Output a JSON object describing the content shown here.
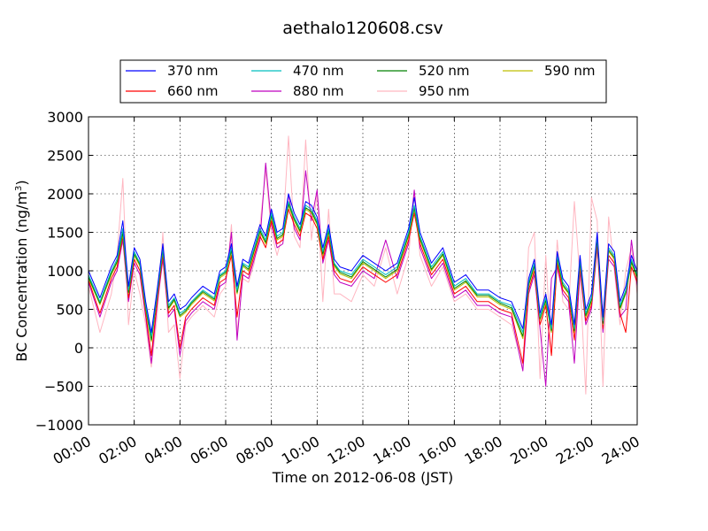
{
  "chart_data": {
    "type": "line",
    "title": "aethalo120608.csv",
    "xlabel": "Time on 2012-06-08 (JST)",
    "ylabel": "BC Concentration (ng/m",
    "ylabel_sup": "3",
    "ylabel_end": ")",
    "xlim": [
      0,
      24
    ],
    "ylim": [
      -1000,
      3000
    ],
    "xticks": [
      0,
      2,
      4,
      6,
      8,
      10,
      12,
      14,
      16,
      18,
      20,
      22,
      24
    ],
    "xtick_labels": [
      "00:00",
      "02:00",
      "04:00",
      "06:00",
      "08:00",
      "10:00",
      "12:00",
      "14:00",
      "16:00",
      "18:00",
      "20:00",
      "22:00",
      "24:00"
    ],
    "yticks": [
      -1000,
      -500,
      0,
      500,
      1000,
      1500,
      2000,
      2500,
      3000
    ],
    "ytick_labels": [
      "−1000",
      "−500",
      "0",
      "500",
      "1000",
      "1500",
      "2000",
      "2500",
      "3000"
    ],
    "grid": true,
    "legend_position": "top",
    "x": [
      0.0,
      0.5,
      1.0,
      1.25,
      1.5,
      1.75,
      2.0,
      2.25,
      2.5,
      2.75,
      3.0,
      3.25,
      3.5,
      3.75,
      4.0,
      4.25,
      4.5,
      5.0,
      5.5,
      5.75,
      6.0,
      6.25,
      6.5,
      6.75,
      7.0,
      7.25,
      7.5,
      7.75,
      8.0,
      8.25,
      8.5,
      8.75,
      9.0,
      9.25,
      9.5,
      9.75,
      10.0,
      10.25,
      10.5,
      10.75,
      11.0,
      11.5,
      12.0,
      12.5,
      13.0,
      13.5,
      14.0,
      14.25,
      14.5,
      15.0,
      15.5,
      16.0,
      16.5,
      17.0,
      17.5,
      18.0,
      18.5,
      19.0,
      19.25,
      19.5,
      19.75,
      20.0,
      20.25,
      20.5,
      20.75,
      21.0,
      21.25,
      21.5,
      21.75,
      22.0,
      22.25,
      22.5,
      22.75,
      23.0,
      23.25,
      23.5,
      23.75,
      24.0
    ],
    "series": [
      {
        "name": "370 nm",
        "color": "#0000ff",
        "values": [
          1000,
          650,
          1050,
          1200,
          1650,
          800,
          1300,
          1150,
          600,
          200,
          750,
          1350,
          600,
          700,
          500,
          550,
          650,
          800,
          700,
          1000,
          1050,
          1350,
          800,
          1150,
          1100,
          1350,
          1600,
          1450,
          1800,
          1500,
          1550,
          2000,
          1750,
          1600,
          1900,
          1850,
          1700,
          1300,
          1600,
          1150,
          1050,
          1000,
          1200,
          1100,
          1000,
          1100,
          1550,
          1950,
          1500,
          1100,
          1300,
          850,
          950,
          750,
          750,
          650,
          600,
          250,
          900,
          1150,
          450,
          700,
          300,
          1250,
          900,
          800,
          300,
          1200,
          500,
          700,
          1500,
          400,
          1350,
          1250,
          600,
          800,
          1200,
          1000
        ]
      },
      {
        "name": "470 nm",
        "color": "#00bfbf",
        "values": [
          950,
          600,
          1000,
          1150,
          1550,
          750,
          1250,
          1100,
          550,
          150,
          700,
          1300,
          550,
          650,
          450,
          500,
          600,
          750,
          650,
          950,
          1000,
          1300,
          750,
          1100,
          1050,
          1300,
          1550,
          1400,
          1750,
          1450,
          1500,
          1900,
          1700,
          1550,
          1850,
          1800,
          1650,
          1250,
          1550,
          1100,
          1000,
          950,
          1150,
          1050,
          950,
          1050,
          1500,
          1850,
          1450,
          1050,
          1250,
          800,
          900,
          700,
          700,
          600,
          550,
          200,
          850,
          1100,
          400,
          650,
          250,
          1200,
          850,
          750,
          250,
          1150,
          450,
          650,
          1450,
          350,
          1300,
          1200,
          550,
          750,
          1150,
          950
        ]
      },
      {
        "name": "520 nm",
        "color": "#008000",
        "values": [
          920,
          580,
          970,
          1120,
          1500,
          720,
          1220,
          1080,
          520,
          100,
          680,
          1270,
          520,
          630,
          420,
          480,
          580,
          730,
          630,
          930,
          980,
          1270,
          720,
          1080,
          1020,
          1270,
          1520,
          1370,
          1720,
          1420,
          1470,
          1870,
          1670,
          1520,
          1820,
          1770,
          1620,
          1220,
          1520,
          1080,
          980,
          920,
          1120,
          1020,
          920,
          1020,
          1470,
          1820,
          1420,
          1020,
          1220,
          770,
          870,
          680,
          680,
          580,
          520,
          150,
          820,
          1070,
          380,
          620,
          220,
          1170,
          820,
          720,
          220,
          1120,
          420,
          620,
          1420,
          320,
          1270,
          1170,
          520,
          720,
          1120,
          920
        ]
      },
      {
        "name": "590 nm",
        "color": "#bfbf00",
        "values": [
          900,
          560,
          950,
          1100,
          1480,
          700,
          1200,
          1060,
          500,
          80,
          660,
          1250,
          500,
          610,
          400,
          460,
          560,
          710,
          610,
          910,
          960,
          1250,
          700,
          1060,
          1000,
          1250,
          1500,
          1350,
          1700,
          1400,
          1450,
          1850,
          1650,
          1500,
          1800,
          1750,
          1600,
          1200,
          1500,
          1060,
          960,
          900,
          1100,
          1000,
          900,
          1000,
          1450,
          1800,
          1400,
          1000,
          1200,
          750,
          850,
          660,
          660,
          560,
          500,
          120,
          800,
          1050,
          360,
          600,
          200,
          1150,
          800,
          700,
          200,
          1100,
          400,
          600,
          1400,
          300,
          1250,
          1150,
          500,
          700,
          1100,
          900
        ]
      },
      {
        "name": "660 nm",
        "color": "#ff0000",
        "values": [
          880,
          450,
          900,
          1050,
          1450,
          650,
          1150,
          1000,
          450,
          -100,
          600,
          1200,
          450,
          550,
          0,
          400,
          500,
          650,
          550,
          850,
          900,
          1200,
          400,
          1000,
          950,
          1200,
          1450,
          1300,
          1650,
          1350,
          1400,
          1800,
          1600,
          1450,
          1750,
          1700,
          1550,
          1150,
          1450,
          1000,
          900,
          850,
          1050,
          950,
          850,
          950,
          1400,
          1750,
          1350,
          950,
          1150,
          700,
          800,
          600,
          600,
          500,
          450,
          -200,
          750,
          1000,
          300,
          550,
          -100,
          1100,
          750,
          650,
          100,
          1050,
          350,
          550,
          1350,
          250,
          1200,
          1100,
          450,
          200,
          1050,
          850
        ]
      },
      {
        "name": "880 nm",
        "color": "#bf00bf",
        "values": [
          850,
          400,
          850,
          1000,
          1400,
          600,
          1100,
          950,
          400,
          -200,
          550,
          1150,
          400,
          500,
          -100,
          350,
          450,
          600,
          500,
          800,
          850,
          1500,
          100,
          950,
          900,
          1150,
          1400,
          2400,
          1600,
          1300,
          1350,
          2000,
          1550,
          1400,
          2300,
          1650,
          2050,
          1100,
          1400,
          950,
          850,
          800,
          1000,
          900,
          1400,
          900,
          1350,
          2050,
          1300,
          900,
          1100,
          650,
          750,
          550,
          550,
          450,
          400,
          -300,
          700,
          950,
          250,
          -500,
          900,
          1050,
          700,
          600,
          -200,
          1000,
          300,
          500,
          1300,
          200,
          1150,
          1050,
          400,
          500,
          1400,
          800
        ]
      },
      {
        "name": "950 nm",
        "color": "#ffb6c1",
        "values": [
          800,
          200,
          700,
          1200,
          2200,
          300,
          1000,
          700,
          300,
          -250,
          400,
          1500,
          200,
          300,
          -400,
          300,
          400,
          550,
          400,
          700,
          800,
          1600,
          200,
          900,
          850,
          1100,
          1600,
          2300,
          1500,
          1200,
          1500,
          2750,
          1450,
          1300,
          2700,
          1400,
          2000,
          600,
          1800,
          700,
          700,
          600,
          950,
          800,
          1300,
          700,
          1200,
          2000,
          1200,
          800,
          1050,
          600,
          700,
          500,
          500,
          400,
          300,
          -250,
          1300,
          1500,
          -400,
          1200,
          -100,
          1400,
          600,
          500,
          1900,
          900,
          -600,
          1950,
          1650,
          -500,
          1700,
          1000,
          300,
          1000,
          1300,
          700
        ]
      }
    ]
  }
}
